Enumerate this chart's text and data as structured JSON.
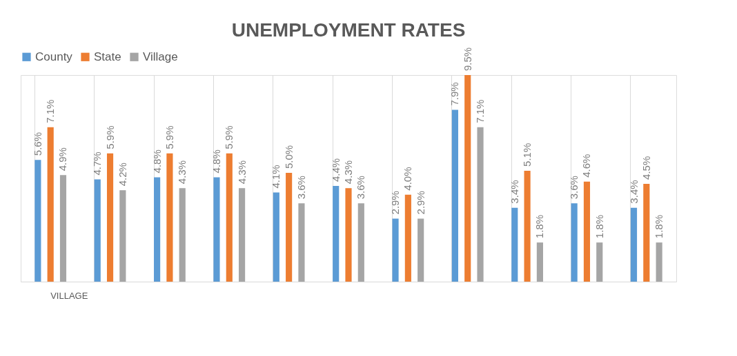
{
  "chart_data": {
    "type": "bar",
    "title": "UNEMPLOYMENT RATES",
    "categories": [
      "VILLAGE",
      null,
      null,
      null,
      null,
      null,
      null,
      null,
      null,
      null,
      null
    ],
    "series": [
      {
        "name": "County",
        "color": "#5b9bd5",
        "values": [
          5.6,
          4.7,
          4.8,
          4.8,
          4.1,
          4.4,
          2.9,
          7.9,
          3.4,
          3.6,
          3.4
        ],
        "value_labels": [
          "5.6%",
          "4.7%",
          "4.8%",
          "4.8%",
          "4.1%",
          "4.4%",
          "2.9%",
          "7.9%",
          "3.4%",
          "3.6%",
          "3.4%"
        ]
      },
      {
        "name": "State",
        "color": "#ed7d31",
        "values": [
          7.1,
          5.9,
          5.9,
          5.9,
          5.0,
          4.3,
          4.0,
          9.5,
          5.1,
          4.6,
          4.5
        ],
        "value_labels": [
          "7.1%",
          "5.9%",
          "5.9%",
          "5.9%",
          "5.0%",
          "4.3%",
          "4.0%",
          "9.5%",
          "5.1%",
          "4.6%",
          "4.5%"
        ]
      },
      {
        "name": "Village",
        "color": "#a5a5a5",
        "values": [
          4.9,
          4.2,
          4.3,
          4.3,
          3.6,
          3.6,
          2.9,
          7.1,
          1.8,
          1.8,
          1.8
        ],
        "value_labels": [
          "4.9%",
          "4.2%",
          "4.3%",
          "4.3%",
          "3.6%",
          "3.6%",
          "2.9%",
          "7.1%",
          "1.8%",
          "1.8%",
          "1.8%"
        ]
      }
    ],
    "grid": "x",
    "legend": "top"
  }
}
